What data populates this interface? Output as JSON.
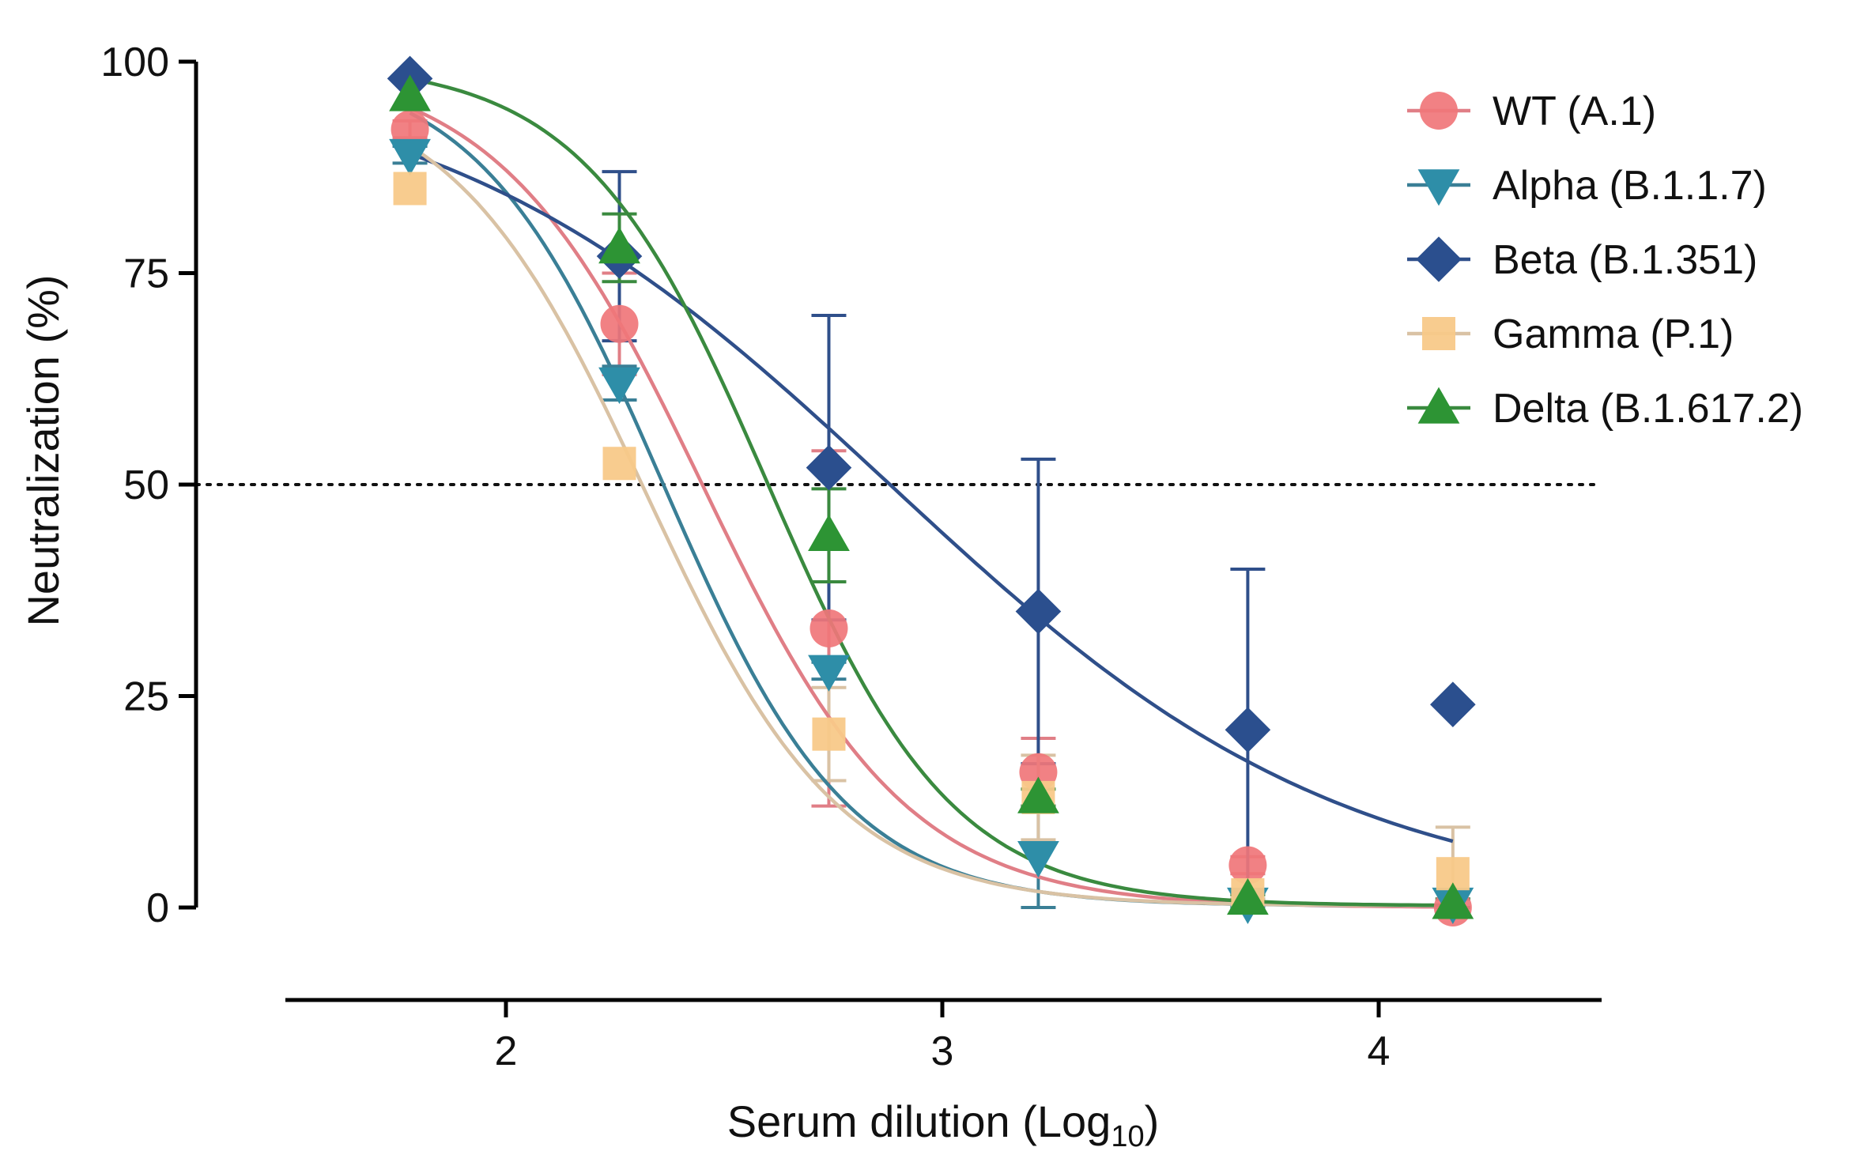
{
  "chart_data": {
    "type": "scatter",
    "title": "",
    "xlabel": "Serum dilution (Log",
    "xlabel_sub": "10",
    "xlabel_close": ")",
    "ylabel": "Neutralization (%)",
    "xlim": [
      1.5,
      4.5
    ],
    "ylim": [
      0,
      100
    ],
    "x_ticks": [
      2,
      3,
      4
    ],
    "x_tick_labels": [
      "2",
      "3",
      "4"
    ],
    "y_ticks": [
      0,
      25,
      50,
      75,
      100
    ],
    "y_tick_labels": [
      "0",
      "25",
      "50",
      "75",
      "100"
    ],
    "reference_line": {
      "y": 50,
      "style": "dotted"
    },
    "legend_position": "top-right",
    "x": [
      1.78,
      2.26,
      2.74,
      3.22,
      3.7,
      4.17
    ],
    "series": [
      {
        "name": "WT  (A.1)",
        "marker": "circle",
        "color": "#f0767a",
        "line_color": "#e07e86",
        "values": [
          92,
          69,
          33,
          16,
          5,
          0
        ],
        "errors": [
          1,
          6,
          21,
          4,
          1,
          0
        ],
        "fit": {
          "top": 100,
          "bottom": 0,
          "logIC50": 2.45,
          "hill": -1.85,
          "x_end": 4.17
        }
      },
      {
        "name": "Alpha (B.1.1.7)",
        "marker": "triangle-down",
        "color": "#2e8ea8",
        "line_color": "#3a7f96",
        "values": [
          89,
          62,
          28,
          6,
          0.5,
          0.5
        ],
        "errors": [
          1,
          2,
          1,
          6,
          0.5,
          0.5
        ],
        "fit": {
          "top": 100,
          "bottom": 0.2,
          "logIC50": 2.36,
          "hill": -2.05,
          "x_end": 4.17
        }
      },
      {
        "name": "Beta  (B.1.351)",
        "marker": "diamond",
        "color": "#2b4f8e",
        "line_color": "#2f4f8a",
        "values": [
          98,
          77,
          52,
          35,
          21,
          24
        ],
        "errors": [
          0,
          10,
          18,
          18,
          19,
          0
        ],
        "fit": {
          "top": 100,
          "bottom": 0,
          "logIC50": 2.88,
          "hill": -0.83,
          "x_end": 4.17
        }
      },
      {
        "name": "Gamma (P.1)",
        "marker": "square",
        "color": "#f8c989",
        "line_color": "#d9c2a4",
        "values": [
          85,
          52.5,
          20.5,
          13,
          1.5,
          4
        ],
        "errors": [
          0,
          0,
          5.5,
          5,
          0.5,
          5.5
        ],
        "fit": {
          "top": 98,
          "bottom": 0.2,
          "logIC50": 2.32,
          "hill": -1.95,
          "x_end": 4.17
        }
      },
      {
        "name": "Delta (B.1.617.2)",
        "marker": "triangle-up",
        "color": "#2d9434",
        "line_color": "#3a8a3f",
        "values": [
          96,
          78,
          44,
          13,
          1,
          0.5
        ],
        "errors": [
          0,
          4,
          5.5,
          1,
          0.5,
          0.5
        ],
        "fit": {
          "top": 100,
          "bottom": 0.2,
          "logIC50": 2.6,
          "hill": -2.05,
          "x_end": 4.17
        }
      }
    ]
  }
}
